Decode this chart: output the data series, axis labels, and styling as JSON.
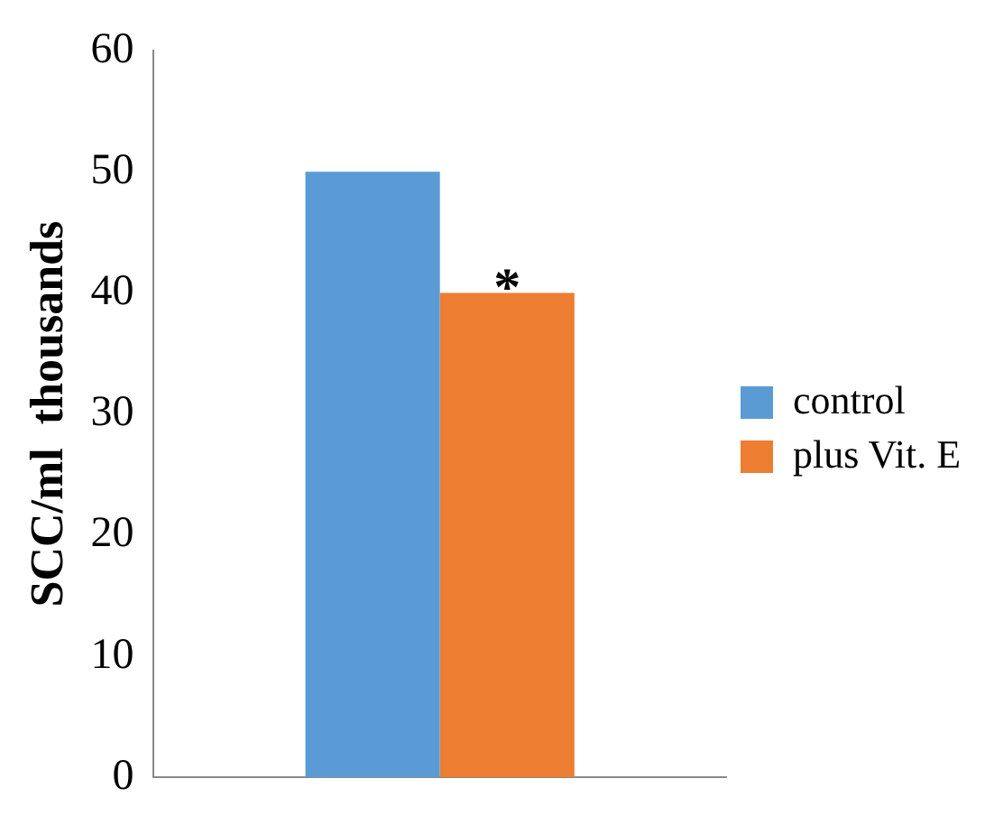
{
  "chart_data": {
    "type": "bar",
    "ylabel": "SCC/ml  thousands",
    "categories": [
      null
    ],
    "series": [
      {
        "name": "control",
        "color": "#5b9bd5",
        "values": [
          50
        ]
      },
      {
        "name": "plus Vit. E",
        "color": "#ed7d31",
        "values": [
          40
        ]
      }
    ],
    "ylim": [
      0,
      60
    ],
    "yticks": [
      0,
      10,
      20,
      30,
      40,
      50,
      60
    ],
    "grid": false,
    "legend": "right",
    "annotations": [
      "*"
    ]
  }
}
